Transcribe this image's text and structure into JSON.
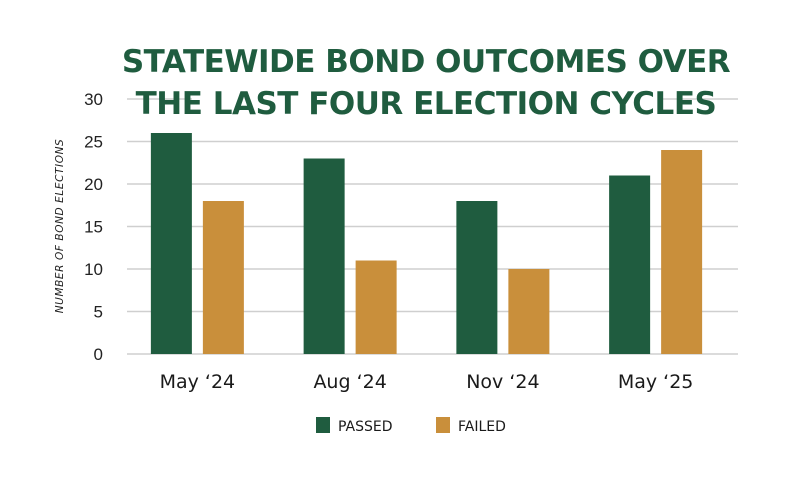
{
  "chart_data": {
    "type": "bar",
    "title": [
      "STATEWIDE BOND OUTCOMES OVER",
      "THE LAST FOUR ELECTION CYCLES"
    ],
    "ylabel": "NUMBER OF BOND ELECTIONS",
    "xlabel": "",
    "categories": [
      "May ‘24",
      "Aug ‘24",
      "Nov ‘24",
      "May ‘25"
    ],
    "series": [
      {
        "name": "PASSED",
        "values": [
          26,
          23,
          18,
          21
        ],
        "color": "#1f5c3f"
      },
      {
        "name": "FAILED",
        "values": [
          18,
          11,
          10,
          24
        ],
        "color": "#c98f3b"
      }
    ],
    "ylim": [
      0,
      30
    ],
    "yticks": [
      0,
      5,
      10,
      15,
      20,
      25,
      30
    ],
    "grid": true,
    "legend_position": "bottom-center"
  }
}
